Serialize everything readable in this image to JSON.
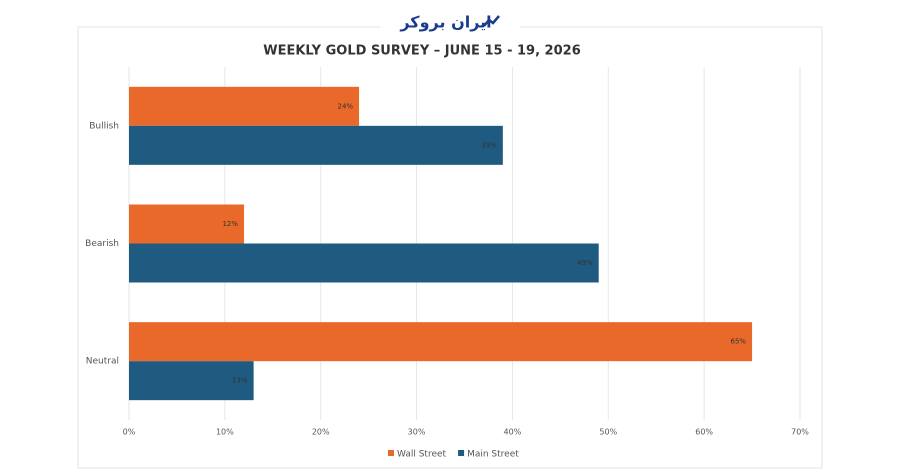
{
  "logo": "ایران بروکر",
  "chart_data": {
    "type": "hbar",
    "title": "WEEKLY GOLD SURVEY – JUNE 15 - 19, 2026",
    "categories": [
      "Bullish",
      "Bearish",
      "Neutral"
    ],
    "series": [
      {
        "name": "Wall Street",
        "color": "#e8692a",
        "values": [
          24,
          12,
          65
        ],
        "value_labels": [
          "24%",
          "12%",
          "65%"
        ]
      },
      {
        "name": "Main Street",
        "color": "#1f5b80",
        "values": [
          39,
          49,
          13
        ],
        "value_labels": [
          "39%",
          "49%",
          "13%"
        ]
      }
    ],
    "xlim": [
      0,
      70
    ],
    "xticks": [
      {
        "value": 0,
        "label": "0%"
      },
      {
        "value": 10,
        "label": "10%"
      },
      {
        "value": 20,
        "label": "20%"
      },
      {
        "value": 30,
        "label": "30%"
      },
      {
        "value": 40,
        "label": "40%"
      },
      {
        "value": 50,
        "label": "50%"
      },
      {
        "value": 60,
        "label": "60%"
      },
      {
        "value": 70,
        "label": "70%"
      }
    ],
    "grid": true,
    "legend": "bottom"
  }
}
